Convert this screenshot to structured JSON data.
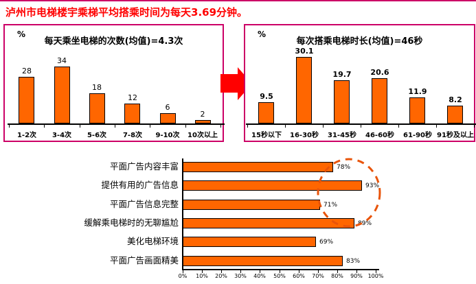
{
  "page": {
    "title": "泸州市电梯楼宇乘梯平均搭乘时间为每天3.69分钟。"
  },
  "colors": {
    "panel_border_magenta": "#CC0066",
    "title_red": "#FF0000",
    "bar_orange": "#FF6600",
    "bar_border": "#000000",
    "arrow_red": "#FF0000",
    "ellipse_orange": "#E8540A"
  },
  "icons": {
    "arrow": "right-block-arrow-icon",
    "highlight": "dashed-ellipse-highlight"
  },
  "chart_data": [
    {
      "id": "daily-elevator-rides",
      "type": "bar",
      "title": "每天乘坐电梯的次数(均值)=4.3次",
      "unit_label": "%",
      "categories": [
        "1-2次",
        "3-4次",
        "5-6次",
        "7-8次",
        "9-10次",
        "10次以上"
      ],
      "values": [
        28,
        34,
        18,
        12,
        6,
        2
      ],
      "value_labels": [
        "28",
        "34",
        "18",
        "12",
        "6",
        "2"
      ],
      "xlabel": "",
      "ylabel": "%",
      "ylim": [
        0,
        40
      ],
      "grid": false,
      "legend": "none"
    },
    {
      "id": "ride-duration",
      "type": "bar",
      "title": "每次搭乘电梯时长(均值)=46秒",
      "unit_label": "%",
      "categories": [
        "15秒以下",
        "16-30秒",
        "31-45秒",
        "46-60秒",
        "61-90秒",
        "91秒及以上"
      ],
      "values": [
        9.5,
        30.1,
        19.7,
        20.6,
        11.9,
        8.2
      ],
      "value_labels": [
        "9.5",
        "30.1",
        "19.7",
        "20.6",
        "11.9",
        "8.2"
      ],
      "xlabel": "",
      "ylabel": "%",
      "ylim": [
        0,
        35
      ],
      "grid": false,
      "legend": "none"
    },
    {
      "id": "elevator-ad-perceptions",
      "type": "bar",
      "orientation": "horizontal",
      "title": "",
      "categories": [
        "平面广告内容丰富",
        "提供有用的广告信息",
        "平面广告信息完整",
        "缓解乘电梯时的无聊尴尬",
        "美化电梯环境",
        "平面广告画面精美"
      ],
      "values": [
        78,
        93,
        71,
        89,
        69,
        83
      ],
      "value_labels": [
        "78%",
        "93%",
        "71%",
        "89%",
        "69%",
        "83%"
      ],
      "x_tick_labels": [
        "0%",
        "10%",
        "20%",
        "30%",
        "40%",
        "50%",
        "60%",
        "70%",
        "80%",
        "90%",
        "100%"
      ],
      "xlim": [
        0,
        100
      ],
      "grid": false,
      "legend": "none"
    }
  ]
}
